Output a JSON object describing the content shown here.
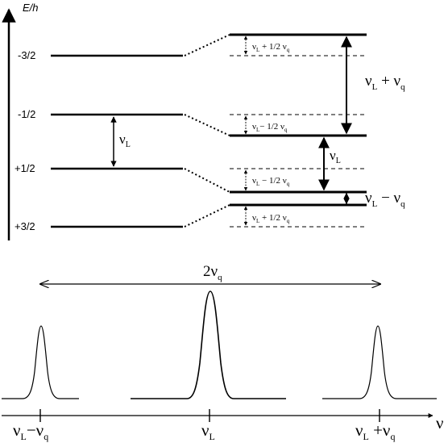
{
  "energy_axis": {
    "label": "E/h"
  },
  "levels": [
    {
      "spin": "-3/2"
    },
    {
      "spin": "-1/2"
    },
    {
      "spin": "+1/2"
    },
    {
      "spin": "+3/2"
    }
  ],
  "gap_labels": {
    "top_shift": {
      "nu": "ν",
      "sub1": "L",
      "mid": " + 1/2 ν",
      "sub2": "q"
    },
    "mid_upper_shift": {
      "nu": "ν",
      "sub1": "L",
      "mid": "− 1/2 ν",
      "sub2": "q"
    },
    "mid_lower_shift": {
      "nu": "ν",
      "sub1": "L",
      "mid": " − 1/2 ν",
      "sub2": "q"
    },
    "bottom_shift": {
      "nu": "ν",
      "sub1": "L",
      "mid": " + 1/2 ν",
      "sub2": "q"
    }
  },
  "transition_labels": {
    "left": {
      "nu": "ν",
      "sub": "L"
    },
    "upper": {
      "nu": "ν",
      "sub1": "L",
      "op": " + ν",
      "sub2": "q"
    },
    "central": {
      "nu": "ν",
      "sub": "L"
    },
    "lower": {
      "nu": "ν",
      "sub1": "L",
      "op": " − ν",
      "sub2": "q"
    }
  },
  "spectrum": {
    "splitting_label": {
      "prefix": "2ν",
      "sub": "q"
    },
    "tick_labels": [
      {
        "nu": "ν",
        "sub1": "L",
        "op": "−ν",
        "sub2": "q"
      },
      {
        "nu": "ν",
        "sub1": "L",
        "op": "",
        "sub2": ""
      },
      {
        "nu": "ν",
        "sub1": "L",
        "op": " +ν",
        "sub2": "q"
      }
    ],
    "axis_label": "ν"
  }
}
